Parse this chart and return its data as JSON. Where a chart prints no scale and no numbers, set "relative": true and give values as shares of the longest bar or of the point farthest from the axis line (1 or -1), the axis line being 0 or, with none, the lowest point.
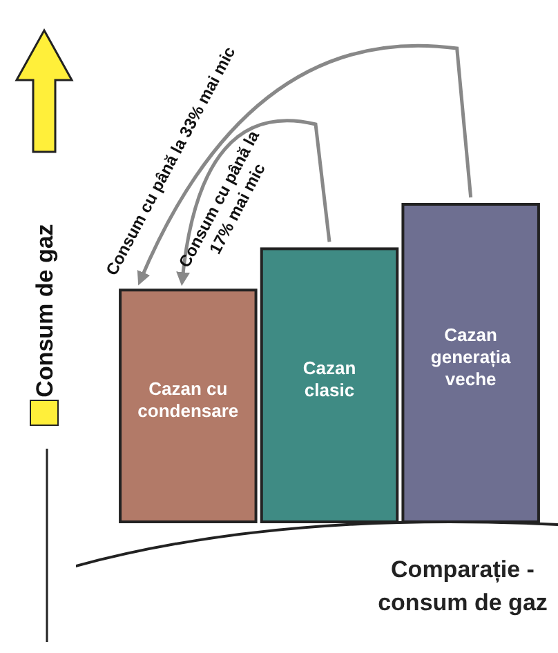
{
  "chart_data": {
    "type": "bar",
    "relative": true,
    "categories": [
      "Cazan cu condensare",
      "Cazan clasic",
      "Cazan generația veche"
    ],
    "values": [
      0.73,
      0.86,
      1
    ],
    "colors": [
      "#b27a68",
      "#3f8b84",
      "#6e6f91"
    ],
    "xlabel": "Comparație - consum de gaz",
    "ylabel": "Consum de gaz",
    "annotations": [
      "Consum cu până la 33% mai mic",
      "Consum cu până la 17% mai mic"
    ]
  }
}
